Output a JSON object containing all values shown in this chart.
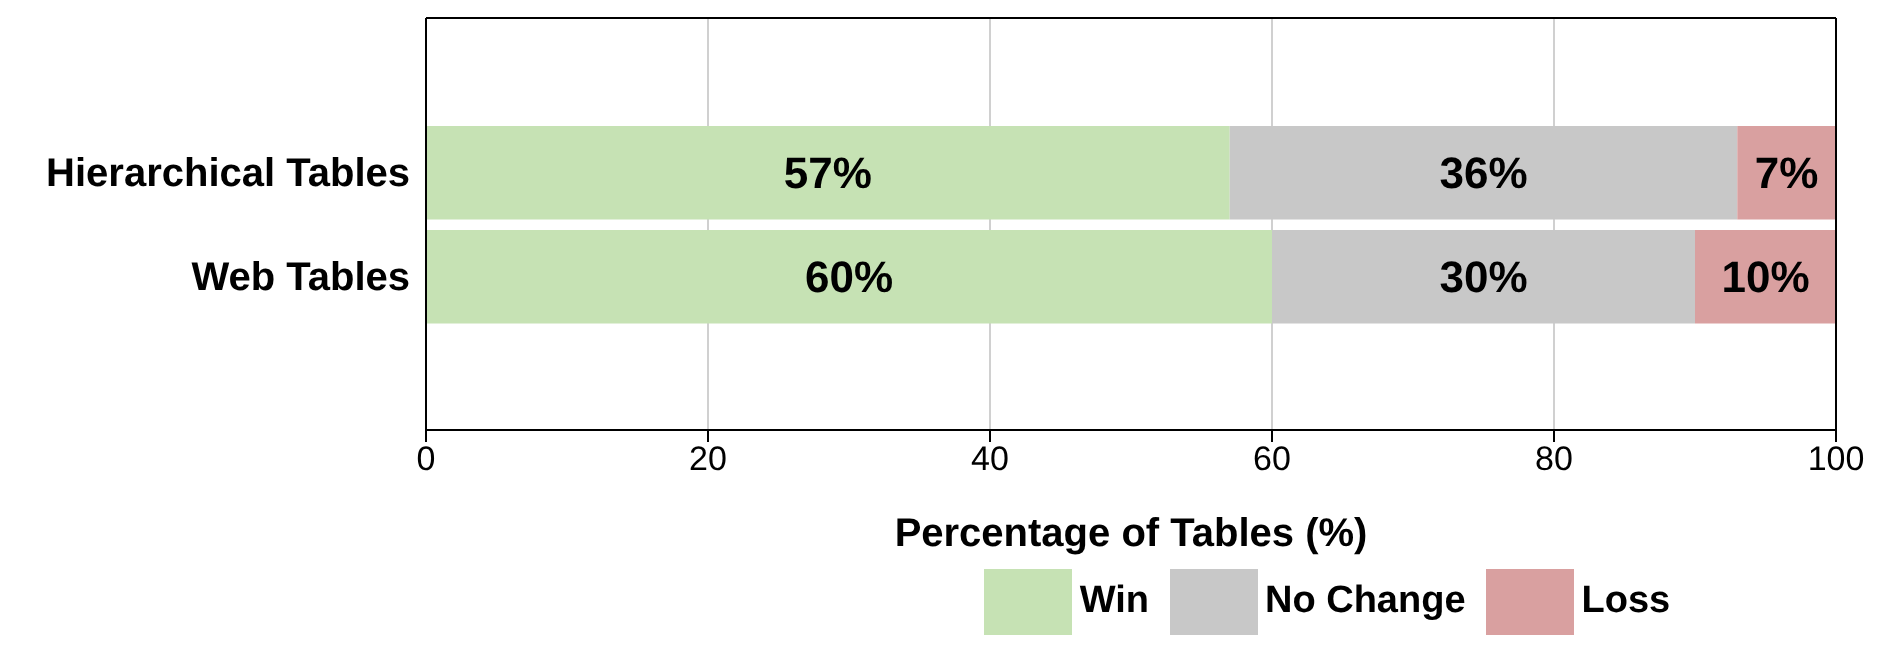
{
  "chart_data": {
    "type": "bar",
    "orientation": "horizontal",
    "stacked": true,
    "categories": [
      "Hierarchical Tables",
      "Web Tables"
    ],
    "series": [
      {
        "name": "Win",
        "color": "#c6e2b4",
        "values": [
          57,
          60
        ],
        "value_labels": [
          "57%",
          "60%"
        ]
      },
      {
        "name": "No Change",
        "color": "#c8c8c8",
        "values": [
          36,
          30
        ],
        "value_labels": [
          "36%",
          "30%"
        ]
      },
      {
        "name": "Loss",
        "color": "#d9a0a0",
        "values": [
          7,
          10
        ],
        "value_labels": [
          "7%",
          "10%"
        ]
      }
    ],
    "xlabel": "Percentage of Tables (%)",
    "xlim": [
      0,
      100
    ],
    "xticks": [
      0,
      20,
      40,
      60,
      80,
      100
    ],
    "grid": "x",
    "legend": "bottom"
  }
}
